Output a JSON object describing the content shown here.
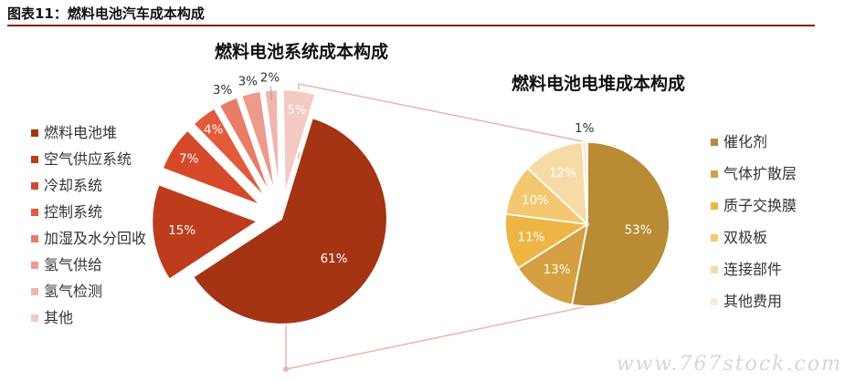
{
  "figure_title": "图表11：燃料电池汽车成本构成",
  "watermark": "www.767stock.com",
  "chart_data": [
    {
      "type": "pie",
      "title": "燃料电池系统成本构成",
      "categories": [
        "燃料电池堆",
        "空气供应系统",
        "冷却系统",
        "控制系统",
        "加湿及水分回收",
        "氢气供给",
        "氢气检测",
        "其他"
      ],
      "values": [
        61,
        15,
        7,
        4,
        3,
        3,
        2,
        5
      ],
      "value_labels": [
        "61%",
        "15%",
        "7%",
        "4%",
        "3%",
        "3%",
        "2%",
        "5%"
      ],
      "colors": [
        "#a43414",
        "#bd3c1c",
        "#d5492a",
        "#e25a3c",
        "#e87c66",
        "#ec9a8b",
        "#f0b5ab",
        "#f4cac3"
      ],
      "legend_position": "left"
    },
    {
      "type": "pie",
      "title": "燃料电池电堆成本构成",
      "categories": [
        "催化剂",
        "气体扩散层",
        "质子交换膜",
        "双极板",
        "连接部件",
        "其他费用"
      ],
      "values": [
        53,
        13,
        11,
        10,
        12,
        1
      ],
      "value_labels": [
        "53%",
        "13%",
        "11%",
        "10%",
        "12%",
        "1%"
      ],
      "colors": [
        "#b98b35",
        "#d4a041",
        "#edb644",
        "#f3c870",
        "#f7dba7",
        "#fbebd6"
      ],
      "legend_position": "right"
    }
  ]
}
